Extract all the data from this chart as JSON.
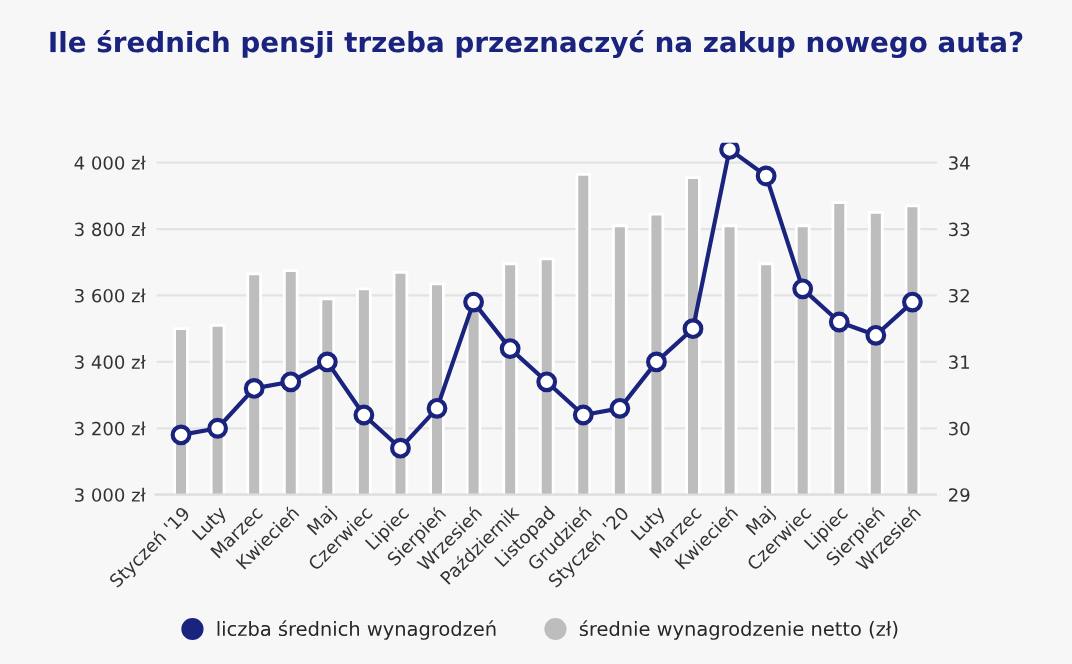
{
  "chart_data": {
    "type": "bar",
    "title": "Ile średnich pensji trzeba przeznaczyć na zakup nowego auta?",
    "categories": [
      "Styczeń '19",
      "Luty",
      "Marzec",
      "Kwiecień",
      "Maj",
      "Czerwiec",
      "Lipiec",
      "Sierpień",
      "Wrzesień",
      "Październik",
      "Listopad",
      "Grudzień",
      "Styczeń '20",
      "Luty",
      "Marzec",
      "Kwiecień",
      "Maj",
      "Czerwiec",
      "Lipiec",
      "Sierpień",
      "Wrzesień"
    ],
    "series": [
      {
        "name": "liczba średnich wynagrodzeń",
        "type": "line",
        "axis": "y2",
        "color": "#1a237e",
        "marker": "circle",
        "values": [
          29.9,
          30.0,
          30.6,
          30.7,
          31.0,
          30.2,
          29.7,
          30.3,
          31.9,
          31.2,
          30.7,
          30.2,
          30.3,
          31.0,
          31.5,
          34.2,
          33.8,
          32.1,
          31.6,
          31.4,
          31.9
        ]
      },
      {
        "name": "średnie wynagrodzenie netto (zł)",
        "color": "#bdbdbd",
        "values": [
          3500,
          3510,
          3665,
          3675,
          3590,
          3620,
          3670,
          3635,
          3605,
          3695,
          3710,
          3965,
          3810,
          3845,
          3955,
          3810,
          3695,
          3810,
          3880,
          3850,
          3870
        ]
      }
    ],
    "ylim": [
      3000,
      4060
    ],
    "yticks": [
      {
        "value": 3000,
        "label": "3 000 zł"
      },
      {
        "value": 3200,
        "label": "3 200 zł"
      },
      {
        "value": 3400,
        "label": "3 400 zł"
      },
      {
        "value": 3600,
        "label": "3 600 zł"
      },
      {
        "value": 3800,
        "label": "3 800 zł"
      },
      {
        "value": 4000,
        "label": "4 000 zł"
      }
    ],
    "y2lim": [
      29,
      34.3
    ],
    "y2ticks": [
      29,
      30,
      31,
      32,
      33,
      34
    ],
    "grid": "y",
    "legend": "bottom"
  }
}
